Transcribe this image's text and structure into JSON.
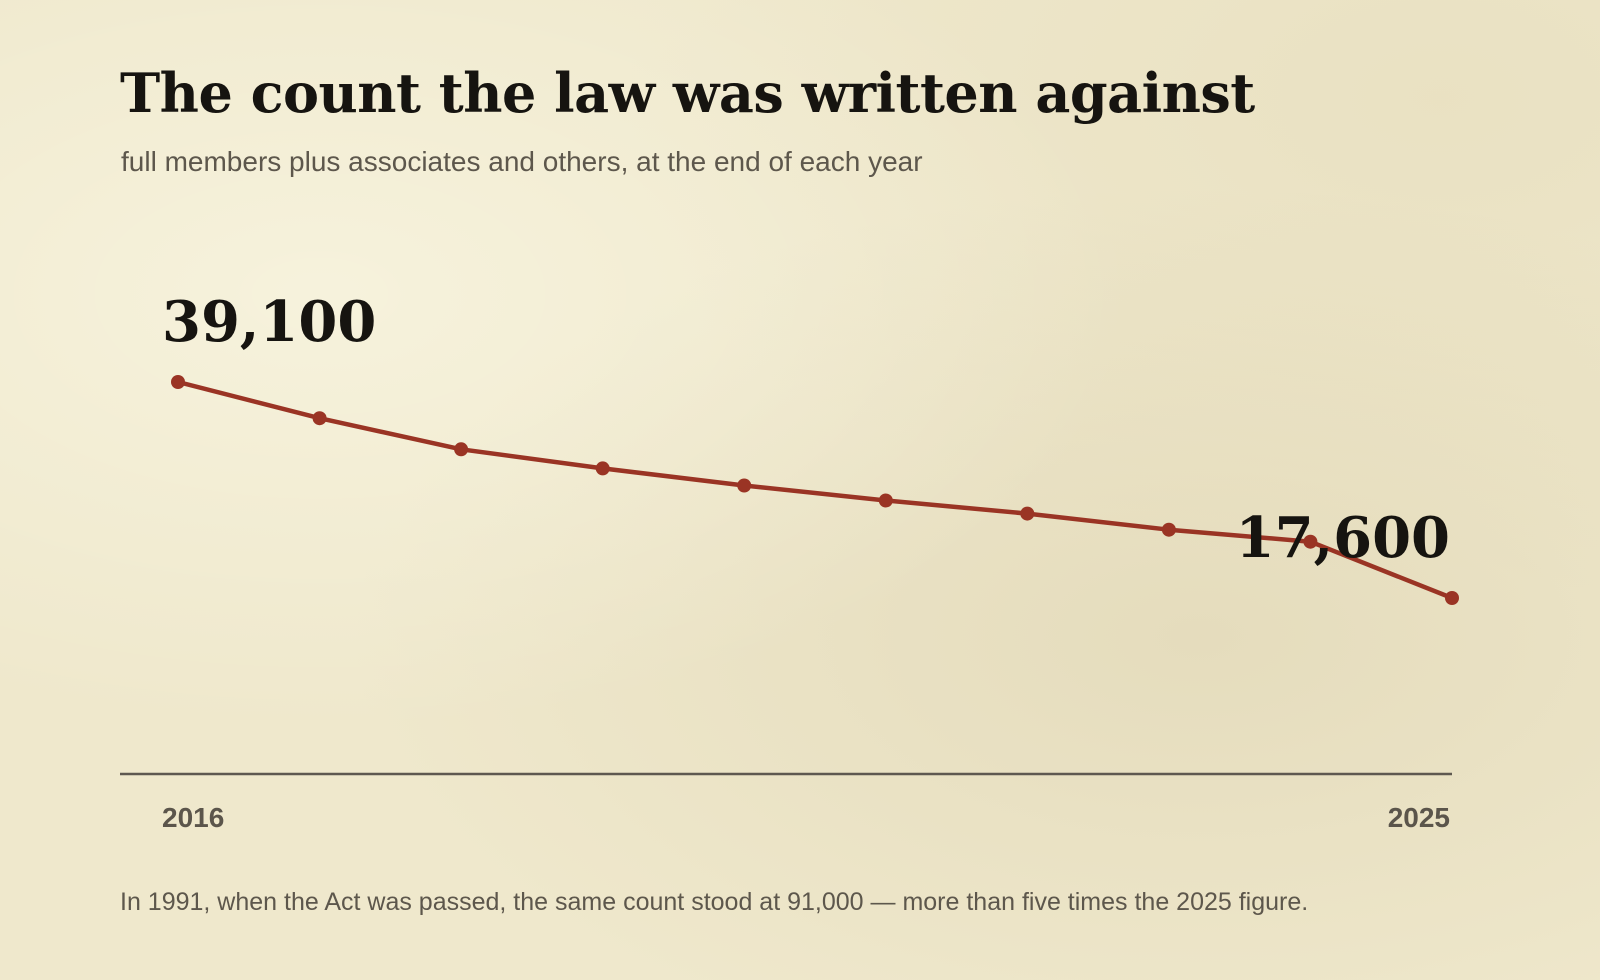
{
  "header": {
    "title": "The count the law was written against",
    "subtitle": "full members plus associates and others, at the end of each year"
  },
  "footer": {
    "note": "In 1991, when the Act was passed, the same count stood at 91,000 — more than five times the 2025 figure."
  },
  "chart_data": {
    "type": "line",
    "title": "The count the law was written against",
    "subtitle": "full members plus associates and others, at the end of each year",
    "xlabel": "",
    "ylabel": "",
    "x": [
      2016,
      2017,
      2018,
      2019,
      2020,
      2021,
      2022,
      2023,
      2024,
      2025
    ],
    "series": [
      {
        "values": [
          39100,
          35500,
          32400,
          30500,
          28800,
          27300,
          26000,
          24400,
          23200,
          17600
        ]
      }
    ],
    "data_labels": {
      "first": "39,100",
      "last": "17,600"
    },
    "x_tick_labels": [
      "2016",
      "2025"
    ],
    "grid": false,
    "legend": "none",
    "colors": {
      "line": "#9a3424",
      "axis": "#5e5850",
      "text": "#161410",
      "muted": "#5d574c",
      "background": "#efe8cc"
    }
  }
}
